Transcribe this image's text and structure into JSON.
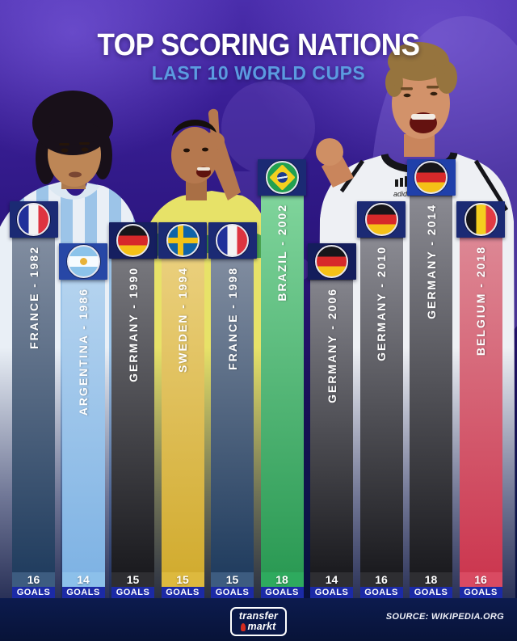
{
  "header": {
    "title": "TOP SCORING NATIONS",
    "subtitle": "LAST 10 WORLD CUPS"
  },
  "chart_data": {
    "type": "bar",
    "title": "TOP SCORING NATIONS",
    "subtitle": "LAST 10 WORLD CUPS",
    "unit_label": "GOALS",
    "ylabel": "GOALS",
    "categories": [
      "FRANCE - 1982",
      "ARGENTINA - 1986",
      "GERMANY - 1990",
      "SWEDEN - 1994",
      "FRANCE - 1998",
      "BRAZIL - 2002",
      "GERMANY - 2006",
      "GERMANY - 2010",
      "GERMANY - 2014",
      "BELGIUM - 2018"
    ],
    "values": [
      16,
      14,
      15,
      15,
      15,
      18,
      14,
      16,
      18,
      16
    ],
    "bars": [
      {
        "label": "FRANCE - 1982",
        "nation": "FRANCE",
        "year": "1982",
        "goals": "16",
        "flag": "france",
        "cap_color": "#1b2a74",
        "body_top": "#818da0",
        "body_bottom": "#213d5f",
        "band_color": "#3d5c80"
      },
      {
        "label": "ARGENTINA - 1986",
        "nation": "ARGENTINA",
        "year": "1986",
        "goals": "14",
        "flag": "argentina",
        "cap_color": "#2747a6",
        "body_top": "#b4d3ef",
        "body_bottom": "#7fb3e4",
        "band_color": "#8cc0ea"
      },
      {
        "label": "GERMANY - 1990",
        "nation": "GERMANY",
        "year": "1990",
        "goals": "15",
        "flag": "germany",
        "cap_color": "#161f60",
        "body_top": "#77777d",
        "body_bottom": "#1b1b1f",
        "band_color": "#2e2e32"
      },
      {
        "label": "SWEDEN - 1994",
        "nation": "SWEDEN",
        "year": "1994",
        "goals": "15",
        "flag": "sweden",
        "cap_color": "#1b2a74",
        "body_top": "#eacf7c",
        "body_bottom": "#d2ac30",
        "band_color": "#ddb93e"
      },
      {
        "label": "FRANCE - 1998",
        "nation": "FRANCE",
        "year": "1998",
        "goals": "15",
        "flag": "france",
        "cap_color": "#1b2a74",
        "body_top": "#808c9f",
        "body_bottom": "#213d5f",
        "band_color": "#3d5c80"
      },
      {
        "label": "BRAZIL - 2002",
        "nation": "BRAZIL",
        "year": "2002",
        "goals": "18",
        "flag": "brazil",
        "cap_color": "#1b2a74",
        "body_top": "#7fd49b",
        "body_bottom": "#2b9a54",
        "band_color": "#2eaa5e"
      },
      {
        "label": "GERMANY - 2006",
        "nation": "GERMANY",
        "year": "2006",
        "goals": "14",
        "flag": "germany",
        "cap_color": "#141d5c",
        "body_top": "#84848c",
        "body_bottom": "#1b1b1f",
        "band_color": "#2e2e32"
      },
      {
        "label": "GERMANY - 2010",
        "nation": "GERMANY",
        "year": "2010",
        "goals": "16",
        "flag": "germany",
        "cap_color": "#1b2a74",
        "body_top": "#8a8a92",
        "body_bottom": "#1b1b1f",
        "band_color": "#2e2e32"
      },
      {
        "label": "GERMANY - 2014",
        "nation": "GERMANY",
        "year": "2014",
        "goals": "18",
        "flag": "germany",
        "cap_color": "#2040aa",
        "body_top": "#8a8a92",
        "body_bottom": "#1b1b1f",
        "band_color": "#2e2e32"
      },
      {
        "label": "BELGIUM - 2018",
        "nation": "BELGIUM",
        "year": "2018",
        "goals": "16",
        "flag": "belgium",
        "cap_color": "#1b2a74",
        "body_top": "#dd8794",
        "body_bottom": "#cc3850",
        "band_color": "#d94a62"
      }
    ]
  },
  "footer": {
    "logo_line1": "transfer",
    "logo_line2": "markt",
    "source": "SOURCE: WIKIPEDIA.ORG"
  },
  "colors": {
    "goals_band": "#1b2aa6",
    "subtitle": "#5b9be0",
    "title": "#ffffff",
    "background_top": "#4c2fae",
    "background_bottom": "#0a1644"
  }
}
